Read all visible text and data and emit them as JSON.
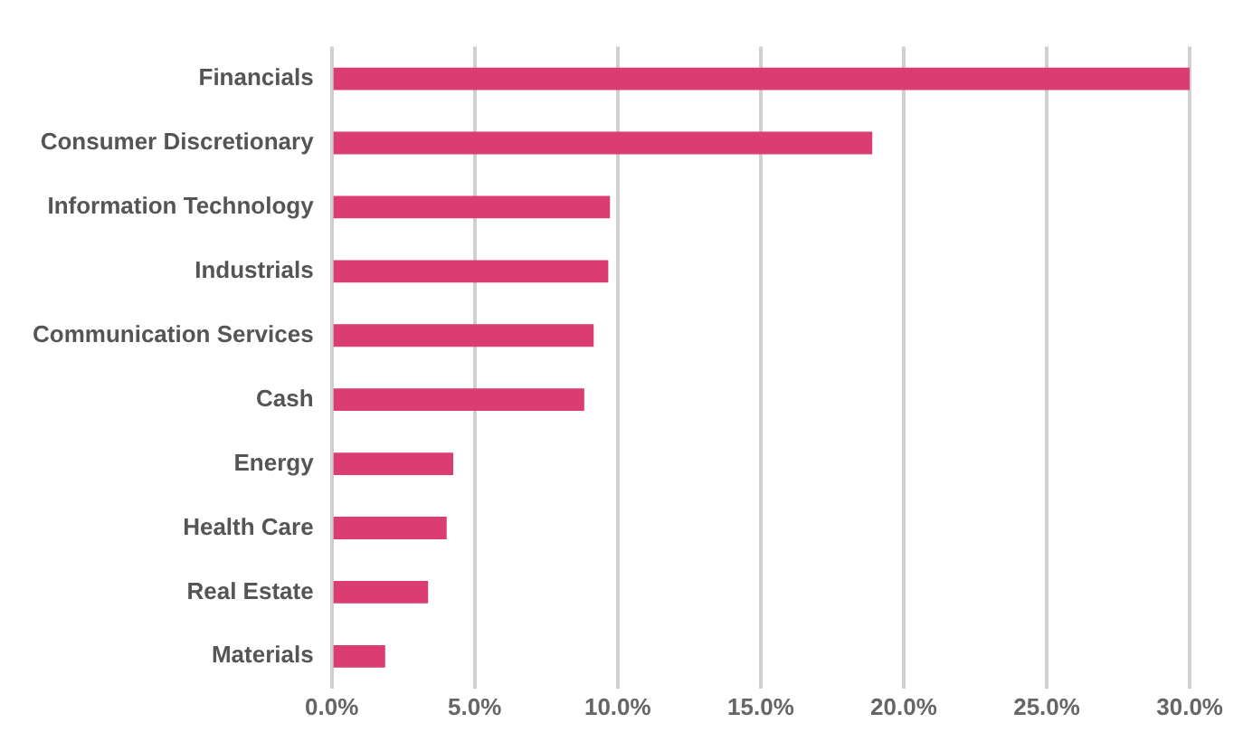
{
  "chart_data": {
    "type": "bar",
    "orientation": "horizontal",
    "categories": [
      "Financials",
      "Consumer Discretionary",
      "Information Technology",
      "Industrials",
      "Communication Services",
      "Cash",
      "Energy",
      "Health Care",
      "Real Estate",
      "Materials"
    ],
    "values": [
      30.0,
      18.9,
      9.73,
      9.67,
      9.16,
      8.83,
      4.25,
      4.02,
      3.37,
      1.87
    ],
    "color": "#db3d72",
    "xlim": [
      0,
      30
    ],
    "xticks": [
      {
        "value": 0,
        "label": "0.0%"
      },
      {
        "value": 5,
        "label": "5.0%"
      },
      {
        "value": 10,
        "label": "10.0%"
      },
      {
        "value": 15,
        "label": "15.0%"
      },
      {
        "value": 20,
        "label": "20.0%"
      },
      {
        "value": 25,
        "label": "25.0%"
      },
      {
        "value": 30,
        "label": "30.0%"
      }
    ],
    "grid": "x"
  }
}
